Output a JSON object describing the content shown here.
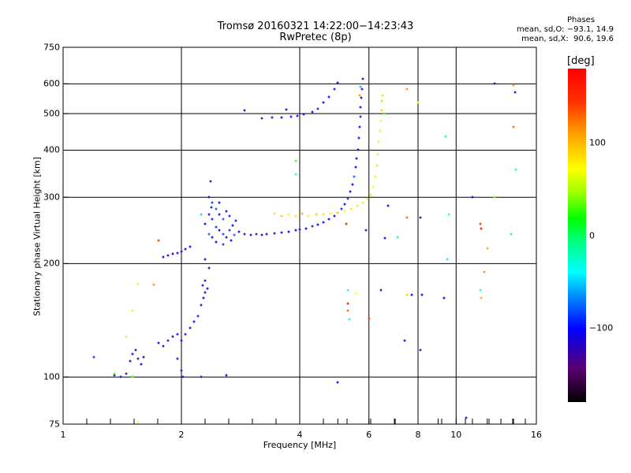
{
  "chart_data": {
    "type": "scatter",
    "title": "Tromsø 20160321 14:22:00−14:23:43",
    "subtitle": "RwPretec (8p)",
    "xlabel": "Frequency [MHz]",
    "ylabel": "Stationary phase Virtual Height [km]",
    "xscale": "log",
    "yscale": "log",
    "xlim": [
      1,
      16
    ],
    "ylim": [
      75,
      750
    ],
    "xticks": [
      "1",
      "2",
      "4",
      "6",
      "8",
      "10",
      "16"
    ],
    "xtick_values": [
      1,
      2,
      4,
      6,
      8,
      10,
      16
    ],
    "yticks": [
      "75",
      "100",
      "200",
      "300",
      "400",
      "500",
      "600",
      "750"
    ],
    "ytick_values": [
      75,
      100,
      200,
      300,
      400,
      500,
      600,
      750
    ],
    "x_grid": [
      2,
      4,
      6,
      8,
      10
    ],
    "y_grid": [
      100,
      200,
      300,
      400,
      500,
      600
    ],
    "stats": {
      "heading": "Phases",
      "line_o": "mean, sd,O: −93.1, 14.9",
      "line_x": "mean, sd,X:  90.6, 19.6"
    },
    "colorbar": {
      "unit": "[deg]",
      "range": [
        -180,
        180
      ],
      "ticks": [
        "100",
        "0",
        "−100"
      ],
      "tick_values": [
        100,
        0,
        -100
      ]
    },
    "point_fields": [
      "frequency_mhz",
      "virtual_height_km",
      "phase_deg"
    ],
    "points": [
      [
        1.35,
        101,
        -110
      ],
      [
        1.4,
        100,
        -105
      ],
      [
        1.45,
        102,
        -120
      ],
      [
        1.5,
        100,
        -100
      ],
      [
        1.48,
        110,
        -110
      ],
      [
        1.5,
        115,
        -115
      ],
      [
        1.53,
        118,
        -105
      ],
      [
        1.55,
        112,
        -120
      ],
      [
        1.58,
        108,
        -100
      ],
      [
        1.6,
        113,
        -110
      ],
      [
        1.75,
        123,
        -100
      ],
      [
        1.8,
        121,
        -110
      ],
      [
        1.85,
        125,
        -95
      ],
      [
        1.9,
        128,
        -100
      ],
      [
        1.95,
        130,
        -110
      ],
      [
        2.0,
        125,
        -100
      ],
      [
        2.05,
        130,
        -95
      ],
      [
        2.1,
        135,
        -105
      ],
      [
        2.15,
        140,
        -100
      ],
      [
        2.2,
        145,
        -95
      ],
      [
        1.95,
        112,
        -100
      ],
      [
        2.0,
        104,
        -110
      ],
      [
        2.02,
        100,
        -105
      ],
      [
        2.25,
        155,
        -110
      ],
      [
        2.28,
        162,
        -100
      ],
      [
        2.3,
        168,
        -105
      ],
      [
        2.33,
        172,
        -100
      ],
      [
        2.27,
        175,
        -110
      ],
      [
        2.3,
        180,
        -115
      ],
      [
        2.35,
        195,
        -120
      ],
      [
        2.3,
        205,
        -110
      ],
      [
        1.8,
        208,
        -100
      ],
      [
        1.85,
        210,
        -105
      ],
      [
        1.9,
        212,
        -100
      ],
      [
        1.95,
        213,
        -110
      ],
      [
        2.0,
        215,
        -100
      ],
      [
        2.05,
        218,
        -105
      ],
      [
        2.1,
        222,
        -100
      ],
      [
        2.35,
        300,
        -100
      ],
      [
        2.4,
        290,
        -90
      ],
      [
        2.45,
        280,
        -80
      ],
      [
        2.35,
        270,
        -110
      ],
      [
        2.4,
        262,
        -95
      ],
      [
        2.5,
        270,
        -100
      ],
      [
        2.55,
        262,
        -80
      ],
      [
        2.6,
        275,
        -105
      ],
      [
        2.65,
        268,
        -95
      ],
      [
        2.45,
        250,
        -90
      ],
      [
        2.5,
        245,
        -100
      ],
      [
        2.55,
        240,
        -85
      ],
      [
        2.6,
        235,
        -110
      ],
      [
        2.65,
        245,
        -90
      ],
      [
        2.7,
        252,
        -100
      ],
      [
        2.75,
        260,
        -95
      ],
      [
        2.4,
        235,
        -100
      ],
      [
        2.45,
        228,
        -105
      ],
      [
        2.55,
        225,
        -90
      ],
      [
        2.35,
        240,
        -80
      ],
      [
        2.3,
        255,
        -100
      ],
      [
        2.38,
        282,
        -110
      ],
      [
        2.5,
        290,
        -100
      ],
      [
        2.68,
        230,
        -105
      ],
      [
        2.72,
        238,
        -80
      ],
      [
        2.8,
        243,
        -115
      ],
      [
        2.9,
        240,
        -120
      ],
      [
        3.0,
        238,
        -115
      ],
      [
        3.1,
        240,
        -120
      ],
      [
        3.2,
        238,
        -110
      ],
      [
        3.3,
        240,
        -105
      ],
      [
        3.45,
        241,
        -100
      ],
      [
        3.6,
        242,
        -105
      ],
      [
        3.75,
        243,
        -100
      ],
      [
        3.9,
        245,
        -100
      ],
      [
        4.0,
        246,
        -105
      ],
      [
        4.15,
        248,
        -100
      ],
      [
        4.3,
        251,
        -95
      ],
      [
        4.45,
        254,
        -100
      ],
      [
        4.6,
        258,
        -100
      ],
      [
        4.75,
        263,
        -105
      ],
      [
        4.9,
        268,
        -100
      ],
      [
        5.0,
        273,
        -100
      ],
      [
        5.1,
        280,
        -95
      ],
      [
        5.2,
        288,
        -100
      ],
      [
        5.3,
        298,
        -90
      ],
      [
        5.38,
        310,
        -100
      ],
      [
        5.45,
        325,
        -100
      ],
      [
        5.5,
        340,
        -80
      ],
      [
        5.55,
        360,
        -100
      ],
      [
        5.58,
        380,
        -100
      ],
      [
        5.62,
        400,
        -105
      ],
      [
        5.65,
        430,
        -100
      ],
      [
        5.68,
        460,
        -100
      ],
      [
        5.7,
        490,
        -95
      ],
      [
        5.72,
        520,
        -100
      ],
      [
        5.74,
        550,
        -100
      ],
      [
        5.76,
        580,
        -105
      ],
      [
        5.78,
        620,
        -110
      ],
      [
        5.72,
        590,
        -60
      ],
      [
        5.68,
        560,
        130
      ],
      [
        3.2,
        487,
        -120
      ],
      [
        3.4,
        488,
        -115
      ],
      [
        3.6,
        488,
        -110
      ],
      [
        3.8,
        490,
        -100
      ],
      [
        3.95,
        494,
        -105
      ],
      [
        4.1,
        498,
        -100
      ],
      [
        4.3,
        505,
        -100
      ],
      [
        4.45,
        515,
        -95
      ],
      [
        4.6,
        535,
        -100
      ],
      [
        4.75,
        555,
        -100
      ],
      [
        4.9,
        580,
        -110
      ],
      [
        5.0,
        605,
        -100
      ],
      [
        3.7,
        512,
        -110
      ],
      [
        3.45,
        272,
        100
      ],
      [
        3.6,
        268,
        110
      ],
      [
        3.75,
        270,
        95
      ],
      [
        3.9,
        268,
        100
      ],
      [
        4.05,
        272,
        120
      ],
      [
        4.2,
        268,
        95
      ],
      [
        4.4,
        270,
        110
      ],
      [
        4.6,
        270,
        100
      ],
      [
        4.8,
        271,
        95
      ],
      [
        5.0,
        273,
        100
      ],
      [
        5.2,
        276,
        90
      ],
      [
        5.4,
        280,
        100
      ],
      [
        5.6,
        285,
        95
      ],
      [
        5.8,
        290,
        80
      ],
      [
        5.95,
        298,
        70
      ],
      [
        6.05,
        305,
        100
      ],
      [
        6.15,
        320,
        90
      ],
      [
        6.22,
        340,
        95
      ],
      [
        6.28,
        365,
        100
      ],
      [
        6.32,
        390,
        100
      ],
      [
        6.36,
        420,
        95
      ],
      [
        6.4,
        450,
        80
      ],
      [
        6.43,
        480,
        90
      ],
      [
        6.46,
        510,
        110
      ],
      [
        6.48,
        540,
        60
      ],
      [
        6.5,
        560,
        100
      ],
      [
        6.55,
        500,
        40
      ],
      [
        7.5,
        580,
        130
      ],
      [
        8.0,
        535,
        100
      ],
      [
        9.4,
        435,
        -20
      ],
      [
        14,
        595,
        130
      ],
      [
        14.1,
        570,
        -110
      ],
      [
        12.5,
        600,
        -120
      ],
      [
        14,
        460,
        140
      ],
      [
        14.2,
        355,
        -30
      ],
      [
        11,
        300,
        -100
      ],
      [
        12.5,
        300,
        50
      ],
      [
        11.5,
        255,
        150
      ],
      [
        11.6,
        248,
        170
      ],
      [
        12,
        220,
        120
      ],
      [
        13.8,
        240,
        -10
      ],
      [
        7.5,
        265,
        140
      ],
      [
        6.7,
        285,
        -100
      ],
      [
        8.1,
        265,
        -120
      ],
      [
        6.6,
        234,
        -100
      ],
      [
        7.1,
        235,
        -30
      ],
      [
        9.6,
        270,
        -30
      ],
      [
        9.5,
        205,
        -40
      ],
      [
        11.5,
        170,
        -20
      ],
      [
        11.6,
        162,
        120
      ],
      [
        11.8,
        190,
        130
      ],
      [
        7.5,
        165,
        110
      ],
      [
        7.7,
        165,
        -100
      ],
      [
        8.2,
        165,
        -100
      ],
      [
        9.3,
        162,
        -100
      ],
      [
        6.45,
        170,
        -110
      ],
      [
        5.3,
        170,
        -40
      ],
      [
        5.55,
        167,
        90
      ],
      [
        5.3,
        157,
        170
      ],
      [
        5.3,
        150,
        140
      ],
      [
        5.35,
        142,
        -30
      ],
      [
        6.0,
        143,
        150
      ],
      [
        7.4,
        125,
        -100
      ],
      [
        8.1,
        118,
        -120
      ],
      [
        5.0,
        97,
        -100
      ],
      [
        10.6,
        78,
        -120
      ],
      [
        2.25,
        100,
        -120
      ],
      [
        2.6,
        101,
        -100
      ],
      [
        2.37,
        331,
        -120
      ],
      [
        2.9,
        510,
        -100
      ],
      [
        2.25,
        270,
        -50
      ],
      [
        1.75,
        230,
        150
      ],
      [
        1.7,
        176,
        130
      ],
      [
        1.55,
        177,
        80
      ],
      [
        1.5,
        150,
        80
      ],
      [
        1.45,
        128,
        70
      ],
      [
        1.2,
        113,
        -90
      ],
      [
        1.35,
        102,
        40
      ],
      [
        1.5,
        100,
        50
      ],
      [
        3.9,
        375,
        40
      ],
      [
        3.9,
        345,
        -30
      ],
      [
        5.25,
        255,
        170
      ],
      [
        5.9,
        245,
        -120
      ],
      [
        1.55,
        76,
        90
      ]
    ]
  }
}
